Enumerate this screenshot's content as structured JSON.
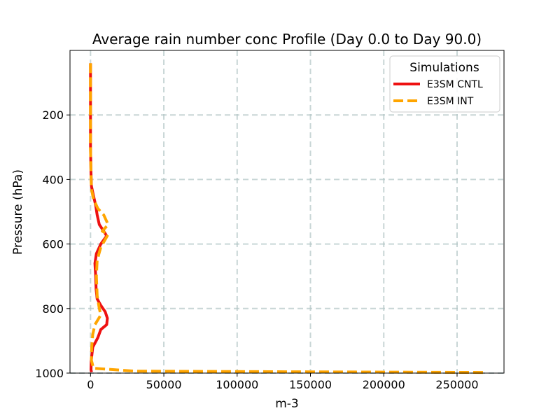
{
  "chart_data": {
    "type": "line",
    "title": "Average rain number conc Profile (Day 0.0 to Day 90.0)",
    "xlabel": "m-3",
    "ylabel": "Pressure (hPa)",
    "xlim": [
      -14000,
      282000
    ],
    "ylim": [
      1000,
      0
    ],
    "xticks": [
      0,
      50000,
      100000,
      150000,
      200000,
      250000
    ],
    "yticks": [
      200,
      400,
      600,
      800,
      1000
    ],
    "grid": true,
    "legend": {
      "title": "Simulations",
      "position": "top-right"
    },
    "series": [
      {
        "name": "E3SM CNTL",
        "color": "#ee1111",
        "style": "solid",
        "points": [
          [
            0,
            40
          ],
          [
            0,
            100
          ],
          [
            0,
            200
          ],
          [
            0,
            300
          ],
          [
            300,
            380
          ],
          [
            600,
            420
          ],
          [
            2000,
            450
          ],
          [
            3500,
            480
          ],
          [
            4500,
            510
          ],
          [
            6000,
            540
          ],
          [
            9000,
            560
          ],
          [
            11000,
            575
          ],
          [
            7000,
            600
          ],
          [
            4000,
            630
          ],
          [
            3000,
            660
          ],
          [
            3500,
            700
          ],
          [
            3800,
            740
          ],
          [
            4500,
            770
          ],
          [
            7000,
            790
          ],
          [
            10000,
            810
          ],
          [
            11500,
            830
          ],
          [
            11000,
            850
          ],
          [
            7000,
            865
          ],
          [
            5000,
            890
          ],
          [
            1500,
            920
          ],
          [
            500,
            960
          ],
          [
            300,
            990
          ],
          [
            700,
            997
          ]
        ]
      },
      {
        "name": "E3SM INT",
        "color": "#ffa500",
        "style": "dashed",
        "points": [
          [
            0,
            40
          ],
          [
            0,
            100
          ],
          [
            0,
            200
          ],
          [
            0,
            300
          ],
          [
            300,
            380
          ],
          [
            600,
            430
          ],
          [
            2000,
            460
          ],
          [
            5000,
            490
          ],
          [
            9000,
            510
          ],
          [
            12000,
            540
          ],
          [
            8000,
            560
          ],
          [
            12000,
            570
          ],
          [
            7000,
            610
          ],
          [
            4500,
            650
          ],
          [
            4000,
            700
          ],
          [
            4500,
            760
          ],
          [
            6000,
            800
          ],
          [
            7000,
            820
          ],
          [
            3000,
            850
          ],
          [
            1500,
            880
          ],
          [
            800,
            920
          ],
          [
            600,
            960
          ],
          [
            2000,
            985
          ],
          [
            30000,
            994
          ],
          [
            150000,
            996
          ],
          [
            270000,
            998
          ]
        ]
      }
    ]
  }
}
